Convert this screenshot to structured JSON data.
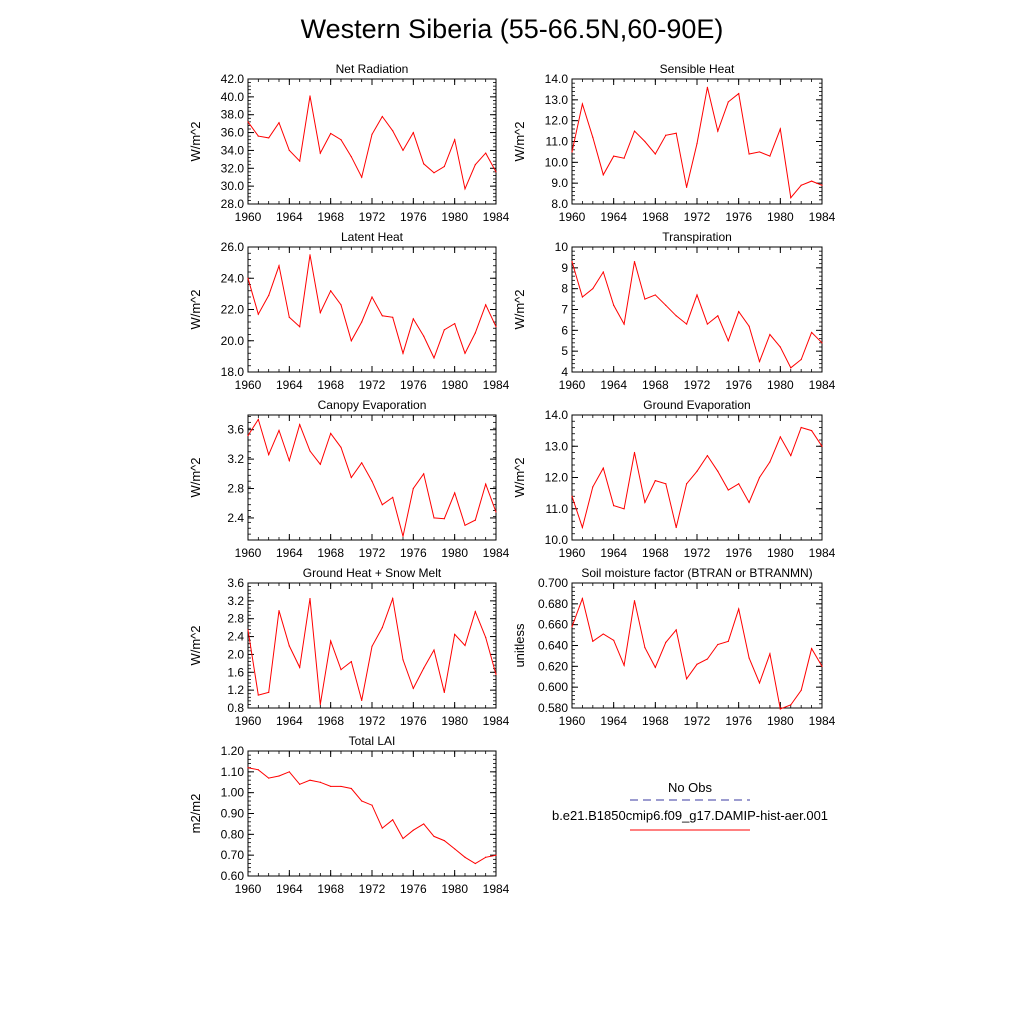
{
  "title": "Western Siberia (55-66.5N,60-90E)",
  "colors": {
    "model": "#ff0000",
    "obs": "#3a3aa0",
    "axis": "#000000"
  },
  "legend": {
    "obs_label": "No Obs",
    "model_label": "b.e21.B1850cmip6.f09_g17.DAMIP-hist-aer.001"
  },
  "chart_data": [
    {
      "type": "line",
      "title": "Net Radiation",
      "ylabel": "W/m^2",
      "x": [
        1960,
        1961,
        1962,
        1963,
        1964,
        1965,
        1966,
        1967,
        1968,
        1969,
        1970,
        1971,
        1972,
        1973,
        1974,
        1975,
        1976,
        1977,
        1978,
        1979,
        1980,
        1981,
        1982,
        1983,
        1984
      ],
      "values": [
        37.2,
        35.6,
        35.4,
        37.1,
        34.0,
        32.8,
        40.1,
        33.7,
        35.9,
        35.2,
        33.3,
        31.0,
        35.8,
        37.8,
        36.2,
        34.0,
        36.0,
        32.5,
        31.5,
        32.2,
        35.2,
        29.7,
        32.4,
        33.7,
        31.6
      ],
      "xlim": [
        1960,
        1984
      ],
      "xticks": [
        "1960",
        "1964",
        "1968",
        "1972",
        "1976",
        "1980",
        "1984"
      ],
      "ylim": [
        28,
        42
      ],
      "yticks": [
        "28.0",
        "30.0",
        "32.0",
        "34.0",
        "36.0",
        "38.0",
        "40.0",
        "42.0"
      ]
    },
    {
      "type": "line",
      "title": "Sensible Heat",
      "ylabel": "W/m^2",
      "x": [
        1960,
        1961,
        1962,
        1963,
        1964,
        1965,
        1966,
        1967,
        1968,
        1969,
        1970,
        1971,
        1972,
        1973,
        1974,
        1975,
        1976,
        1977,
        1978,
        1979,
        1980,
        1981,
        1982,
        1983,
        1984
      ],
      "values": [
        10.5,
        12.8,
        11.2,
        9.4,
        10.3,
        10.2,
        11.5,
        11.0,
        10.4,
        11.3,
        11.4,
        8.8,
        10.9,
        13.6,
        11.5,
        12.9,
        13.3,
        10.4,
        10.5,
        10.3,
        11.6,
        8.3,
        8.9,
        9.1,
        8.9
      ],
      "xlim": [
        1960,
        1984
      ],
      "xticks": [
        "1960",
        "1964",
        "1968",
        "1972",
        "1976",
        "1980",
        "1984"
      ],
      "ylim": [
        8,
        14
      ],
      "yticks": [
        "8.0",
        "9.0",
        "10.0",
        "11.0",
        "12.0",
        "13.0",
        "14.0"
      ]
    },
    {
      "type": "line",
      "title": "Latent Heat",
      "ylabel": "W/m^2",
      "x": [
        1960,
        1961,
        1962,
        1963,
        1964,
        1965,
        1966,
        1967,
        1968,
        1969,
        1970,
        1971,
        1972,
        1973,
        1974,
        1975,
        1976,
        1977,
        1978,
        1979,
        1980,
        1981,
        1982,
        1983,
        1984
      ],
      "values": [
        24.0,
        21.7,
        22.9,
        24.8,
        21.5,
        20.9,
        25.5,
        21.8,
        23.2,
        22.3,
        20.0,
        21.2,
        22.8,
        21.6,
        21.5,
        19.2,
        21.4,
        20.3,
        18.9,
        20.7,
        21.1,
        19.2,
        20.5,
        22.3,
        20.9
      ],
      "xlim": [
        1960,
        1984
      ],
      "xticks": [
        "1960",
        "1964",
        "1968",
        "1972",
        "1976",
        "1980",
        "1984"
      ],
      "ylim": [
        18,
        26
      ],
      "yticks": [
        "18.0",
        "20.0",
        "22.0",
        "24.0",
        "26.0"
      ]
    },
    {
      "type": "line",
      "title": "Transpiration",
      "ylabel": "W/m^2",
      "x": [
        1960,
        1961,
        1962,
        1963,
        1964,
        1965,
        1966,
        1967,
        1968,
        1969,
        1970,
        1971,
        1972,
        1973,
        1974,
        1975,
        1976,
        1977,
        1978,
        1979,
        1980,
        1981,
        1982,
        1983,
        1984
      ],
      "values": [
        9.3,
        7.6,
        8.0,
        8.8,
        7.2,
        6.3,
        9.3,
        7.5,
        7.7,
        7.2,
        6.7,
        6.3,
        7.7,
        6.3,
        6.7,
        5.5,
        6.9,
        6.2,
        4.5,
        5.8,
        5.2,
        4.2,
        4.6,
        5.9,
        5.4
      ],
      "xlim": [
        1960,
        1984
      ],
      "xticks": [
        "1960",
        "1964",
        "1968",
        "1972",
        "1976",
        "1980",
        "1984"
      ],
      "ylim": [
        4,
        10
      ],
      "yticks": [
        "4",
        "5",
        "6",
        "7",
        "8",
        "9",
        "10"
      ]
    },
    {
      "type": "line",
      "title": "Canopy Evaporation",
      "ylabel": "W/m^2",
      "x": [
        1960,
        1961,
        1962,
        1963,
        1964,
        1965,
        1966,
        1967,
        1968,
        1969,
        1970,
        1971,
        1972,
        1973,
        1974,
        1975,
        1976,
        1977,
        1978,
        1979,
        1980,
        1981,
        1982,
        1983,
        1984
      ],
      "values": [
        3.52,
        3.74,
        3.26,
        3.59,
        3.18,
        3.67,
        3.31,
        3.13,
        3.55,
        3.36,
        2.95,
        3.15,
        2.9,
        2.58,
        2.68,
        2.15,
        2.8,
        3.0,
        2.4,
        2.39,
        2.74,
        2.3,
        2.37,
        2.86,
        2.48
      ],
      "xlim": [
        1960,
        1984
      ],
      "xticks": [
        "1960",
        "1964",
        "1968",
        "1972",
        "1976",
        "1980",
        "1984"
      ],
      "ylim": [
        2.1,
        3.8
      ],
      "yticks": [
        "2.4",
        "2.8",
        "3.2",
        "3.6"
      ]
    },
    {
      "type": "line",
      "title": "Ground Evaporation",
      "ylabel": "W/m^2",
      "x": [
        1960,
        1961,
        1962,
        1963,
        1964,
        1965,
        1966,
        1967,
        1968,
        1969,
        1970,
        1971,
        1972,
        1973,
        1974,
        1975,
        1976,
        1977,
        1978,
        1979,
        1980,
        1981,
        1982,
        1983,
        1984
      ],
      "values": [
        11.4,
        10.4,
        11.7,
        12.3,
        11.1,
        11.0,
        12.8,
        11.2,
        11.9,
        11.8,
        10.4,
        11.8,
        12.2,
        12.7,
        12.2,
        11.6,
        11.8,
        11.2,
        12.0,
        12.5,
        13.3,
        12.7,
        13.6,
        13.5,
        13.0
      ],
      "xlim": [
        1960,
        1984
      ],
      "xticks": [
        "1960",
        "1964",
        "1968",
        "1972",
        "1976",
        "1980",
        "1984"
      ],
      "ylim": [
        10,
        14
      ],
      "yticks": [
        "10.0",
        "11.0",
        "12.0",
        "13.0",
        "14.0"
      ]
    },
    {
      "type": "line",
      "title": "Ground Heat + Snow Melt",
      "ylabel": "W/m^2",
      "x": [
        1960,
        1961,
        1962,
        1963,
        1964,
        1965,
        1966,
        1967,
        1968,
        1969,
        1970,
        1971,
        1972,
        1973,
        1974,
        1975,
        1976,
        1977,
        1978,
        1979,
        1980,
        1981,
        1982,
        1983,
        1984
      ],
      "values": [
        2.55,
        1.09,
        1.15,
        2.98,
        2.19,
        1.71,
        3.25,
        0.88,
        2.3,
        1.66,
        1.84,
        0.97,
        2.18,
        2.6,
        3.25,
        1.88,
        1.24,
        1.69,
        2.1,
        1.15,
        2.45,
        2.2,
        2.96,
        2.38,
        1.55
      ],
      "xlim": [
        1960,
        1984
      ],
      "xticks": [
        "1960",
        "1964",
        "1968",
        "1972",
        "1976",
        "1980",
        "1984"
      ],
      "ylim": [
        0.8,
        3.6
      ],
      "yticks": [
        "0.8",
        "1.2",
        "1.6",
        "2.0",
        "2.4",
        "2.8",
        "3.2",
        "3.6"
      ]
    },
    {
      "type": "line",
      "title": "Soil moisture factor (BTRAN or BTRANMN)",
      "ylabel": "unitless",
      "x": [
        1960,
        1961,
        1962,
        1963,
        1964,
        1965,
        1966,
        1967,
        1968,
        1969,
        1970,
        1971,
        1972,
        1973,
        1974,
        1975,
        1976,
        1977,
        1978,
        1979,
        1980,
        1981,
        1982,
        1983,
        1984
      ],
      "values": [
        0.658,
        0.685,
        0.644,
        0.651,
        0.645,
        0.621,
        0.683,
        0.638,
        0.619,
        0.643,
        0.655,
        0.608,
        0.622,
        0.627,
        0.641,
        0.644,
        0.675,
        0.628,
        0.604,
        0.632,
        0.579,
        0.583,
        0.597,
        0.637,
        0.62
      ],
      "xlim": [
        1960,
        1984
      ],
      "xticks": [
        "1960",
        "1964",
        "1968",
        "1972",
        "1976",
        "1980",
        "1984"
      ],
      "ylim": [
        0.58,
        0.7
      ],
      "yticks": [
        "0.580",
        "0.600",
        "0.620",
        "0.640",
        "0.660",
        "0.680",
        "0.700"
      ]
    },
    {
      "type": "line",
      "title": "Total LAI",
      "ylabel": "m2/m2",
      "x": [
        1960,
        1961,
        1962,
        1963,
        1964,
        1965,
        1966,
        1967,
        1968,
        1969,
        1970,
        1971,
        1972,
        1973,
        1974,
        1975,
        1976,
        1977,
        1978,
        1979,
        1980,
        1981,
        1982,
        1983,
        1984
      ],
      "values": [
        1.12,
        1.11,
        1.07,
        1.08,
        1.1,
        1.04,
        1.06,
        1.05,
        1.03,
        1.03,
        1.02,
        0.96,
        0.94,
        0.83,
        0.87,
        0.78,
        0.82,
        0.85,
        0.79,
        0.77,
        0.73,
        0.69,
        0.66,
        0.69,
        0.7
      ],
      "xlim": [
        1960,
        1984
      ],
      "xticks": [
        "1960",
        "1964",
        "1968",
        "1972",
        "1976",
        "1980",
        "1984"
      ],
      "ylim": [
        0.6,
        1.2
      ],
      "yticks": [
        "0.60",
        "0.70",
        "0.80",
        "0.90",
        "1.00",
        "1.10",
        "1.20"
      ]
    }
  ]
}
